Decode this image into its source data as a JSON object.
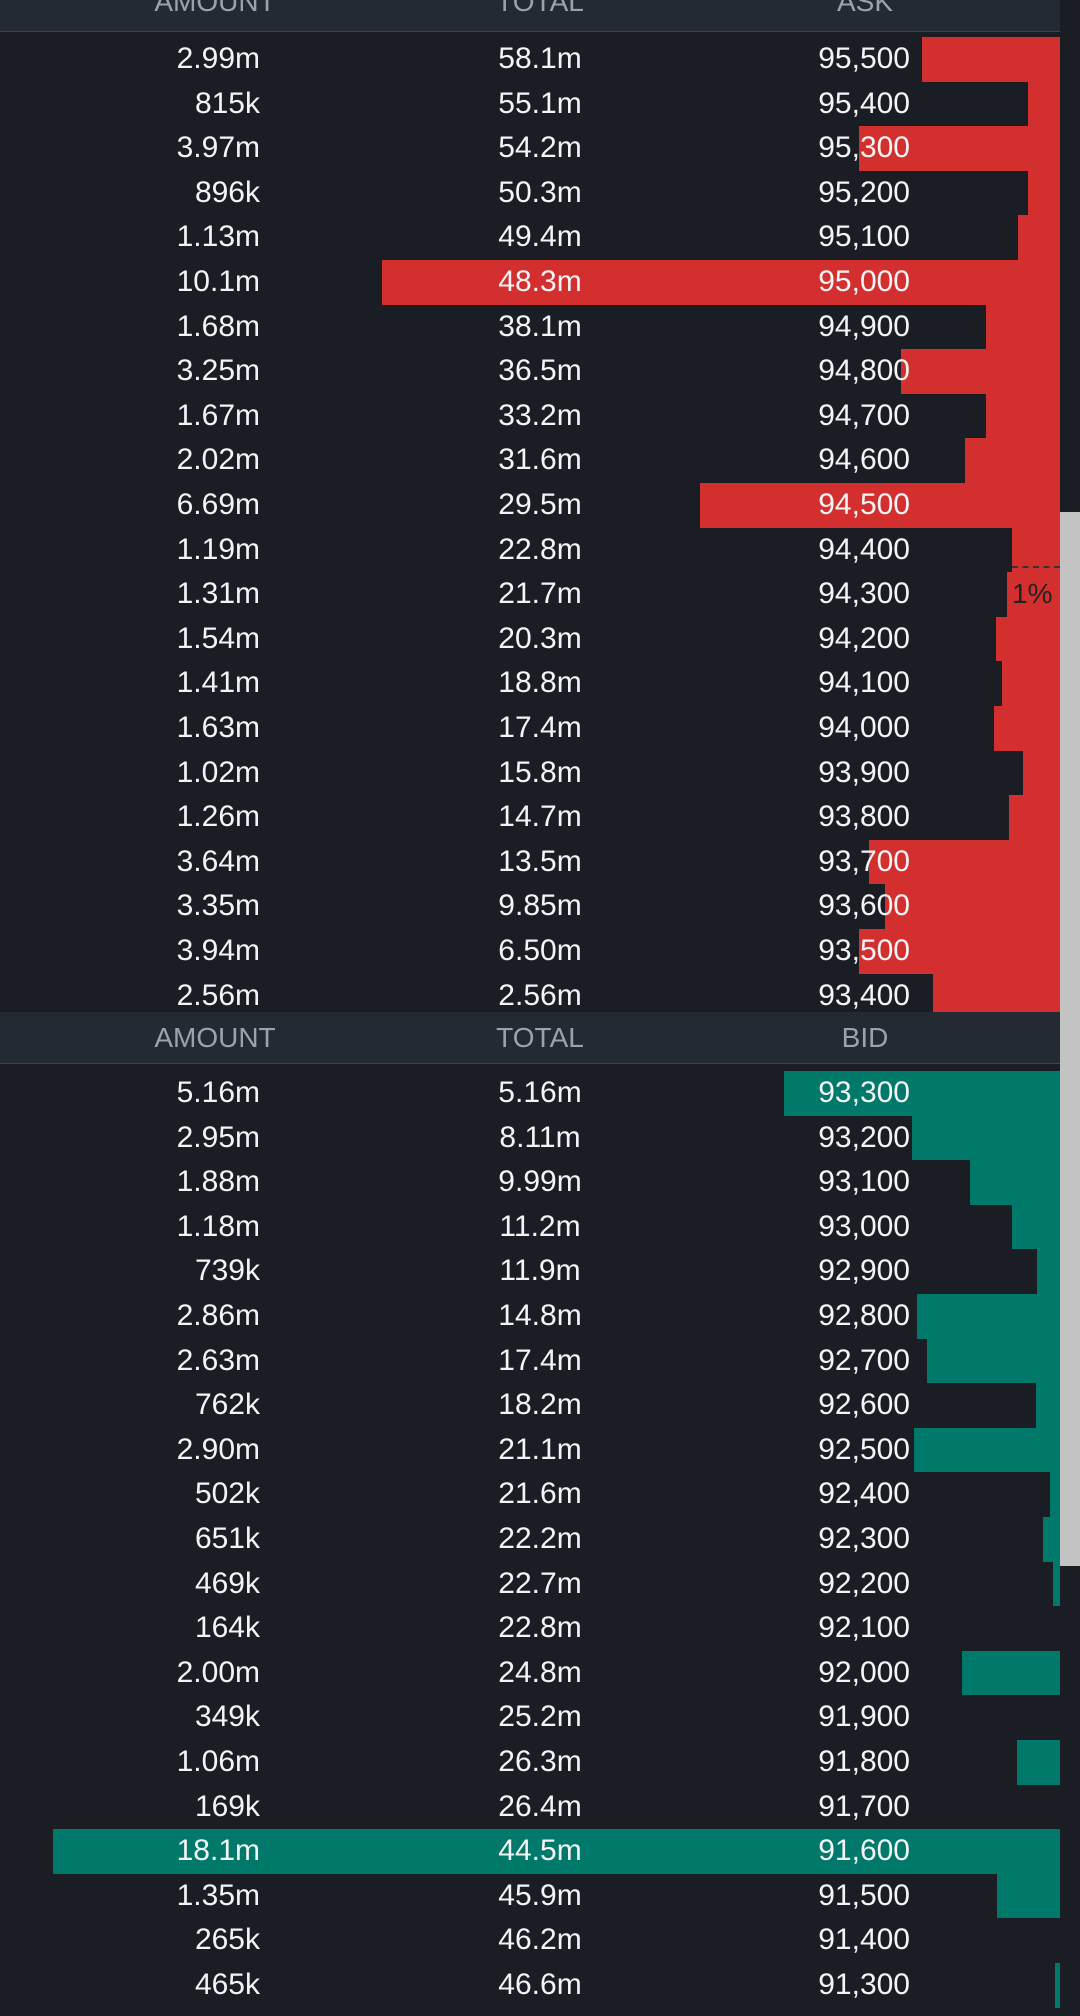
{
  "ask_header": {
    "amount": "AMOUNT",
    "total": "TOTAL",
    "price": "ASK"
  },
  "bid_header": {
    "amount": "AMOUNT",
    "total": "TOTAL",
    "price": "BID"
  },
  "depth_marker": "1%",
  "colors": {
    "ask": "#d32f2f",
    "bid": "#00796b",
    "background": "#1a1e24",
    "header": "#232a32"
  },
  "asks": [
    {
      "amount": "2.99m",
      "total": "58.1m",
      "price": "95,500",
      "depth": 0.13
    },
    {
      "amount": "815k",
      "total": "55.1m",
      "price": "95,400",
      "depth": 0.03
    },
    {
      "amount": "3.97m",
      "total": "54.2m",
      "price": "95,300",
      "depth": 0.19
    },
    {
      "amount": "896k",
      "total": "50.3m",
      "price": "95,200",
      "depth": 0.03
    },
    {
      "amount": "1.13m",
      "total": "49.4m",
      "price": "95,100",
      "depth": 0.04
    },
    {
      "amount": "10.1m",
      "total": "48.3m",
      "price": "95,000",
      "depth": 0.64
    },
    {
      "amount": "1.68m",
      "total": "38.1m",
      "price": "94,900",
      "depth": 0.07
    },
    {
      "amount": "3.25m",
      "total": "36.5m",
      "price": "94,800",
      "depth": 0.15
    },
    {
      "amount": "1.67m",
      "total": "33.2m",
      "price": "94,700",
      "depth": 0.07
    },
    {
      "amount": "2.02m",
      "total": "31.6m",
      "price": "94,600",
      "depth": 0.09
    },
    {
      "amount": "6.69m",
      "total": "29.5m",
      "price": "94,500",
      "depth": 0.34
    },
    {
      "amount": "1.19m",
      "total": "22.8m",
      "price": "94,400",
      "depth": 0.045
    },
    {
      "amount": "1.31m",
      "total": "21.7m",
      "price": "94,300",
      "depth": 0.05
    },
    {
      "amount": "1.54m",
      "total": "20.3m",
      "price": "94,200",
      "depth": 0.06
    },
    {
      "amount": "1.41m",
      "total": "18.8m",
      "price": "94,100",
      "depth": 0.055
    },
    {
      "amount": "1.63m",
      "total": "17.4m",
      "price": "94,000",
      "depth": 0.062
    },
    {
      "amount": "1.02m",
      "total": "15.8m",
      "price": "93,900",
      "depth": 0.035
    },
    {
      "amount": "1.26m",
      "total": "14.7m",
      "price": "93,800",
      "depth": 0.048
    },
    {
      "amount": "3.64m",
      "total": "13.5m",
      "price": "93,700",
      "depth": 0.18
    },
    {
      "amount": "3.35m",
      "total": "9.85m",
      "price": "93,600",
      "depth": 0.165
    },
    {
      "amount": "3.94m",
      "total": "6.50m",
      "price": "93,500",
      "depth": 0.19
    },
    {
      "amount": "2.56m",
      "total": "2.56m",
      "price": "93,400",
      "depth": 0.12
    }
  ],
  "bids": [
    {
      "amount": "5.16m",
      "total": "5.16m",
      "price": "93,300",
      "depth": 0.26
    },
    {
      "amount": "2.95m",
      "total": "8.11m",
      "price": "93,200",
      "depth": 0.14
    },
    {
      "amount": "1.88m",
      "total": "9.99m",
      "price": "93,100",
      "depth": 0.085
    },
    {
      "amount": "1.18m",
      "total": "11.2m",
      "price": "93,000",
      "depth": 0.045
    },
    {
      "amount": "739k",
      "total": "11.9m",
      "price": "92,900",
      "depth": 0.022
    },
    {
      "amount": "2.86m",
      "total": "14.8m",
      "price": "92,800",
      "depth": 0.135
    },
    {
      "amount": "2.63m",
      "total": "17.4m",
      "price": "92,700",
      "depth": 0.125
    },
    {
      "amount": "762k",
      "total": "18.2m",
      "price": "92,600",
      "depth": 0.023
    },
    {
      "amount": "2.90m",
      "total": "21.1m",
      "price": "92,500",
      "depth": 0.138
    },
    {
      "amount": "502k",
      "total": "21.6m",
      "price": "92,400",
      "depth": 0.009
    },
    {
      "amount": "651k",
      "total": "22.2m",
      "price": "92,300",
      "depth": 0.016
    },
    {
      "amount": "469k",
      "total": "22.7m",
      "price": "92,200",
      "depth": 0.007
    },
    {
      "amount": "164k",
      "total": "22.8m",
      "price": "92,100",
      "depth": 0.0
    },
    {
      "amount": "2.00m",
      "total": "24.8m",
      "price": "92,000",
      "depth": 0.092
    },
    {
      "amount": "349k",
      "total": "25.2m",
      "price": "91,900",
      "depth": 0.0
    },
    {
      "amount": "1.06m",
      "total": "26.3m",
      "price": "91,800",
      "depth": 0.041
    },
    {
      "amount": "169k",
      "total": "26.4m",
      "price": "91,700",
      "depth": 0.0
    },
    {
      "amount": "18.1m",
      "total": "44.5m",
      "price": "91,600",
      "depth": 0.95
    },
    {
      "amount": "1.35m",
      "total": "45.9m",
      "price": "91,500",
      "depth": 0.059
    },
    {
      "amount": "265k",
      "total": "46.2m",
      "price": "91,400",
      "depth": 0.0
    },
    {
      "amount": "465k",
      "total": "46.6m",
      "price": "91,300",
      "depth": 0.005
    }
  ]
}
